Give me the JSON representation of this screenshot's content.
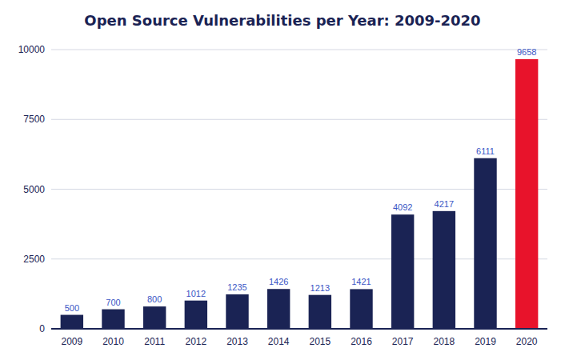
{
  "chart_data": {
    "type": "bar",
    "title": "Open Source Vulnerabilities per Year: 2009-2020",
    "categories": [
      "2009",
      "2010",
      "2011",
      "2012",
      "2013",
      "2014",
      "2015",
      "2016",
      "2017",
      "2018",
      "2019",
      "2020"
    ],
    "values": [
      500,
      700,
      800,
      1012,
      1235,
      1426,
      1213,
      1421,
      4092,
      4217,
      6111,
      9658
    ],
    "colors": [
      "#1a2354",
      "#1a2354",
      "#1a2354",
      "#1a2354",
      "#1a2354",
      "#1a2354",
      "#1a2354",
      "#1a2354",
      "#1a2354",
      "#1a2354",
      "#1a2354",
      "#e8132b"
    ],
    "ylim": [
      0,
      10000
    ],
    "yticks": [
      0,
      2500,
      5000,
      7500,
      10000
    ],
    "grid": true,
    "data_labels": true
  }
}
